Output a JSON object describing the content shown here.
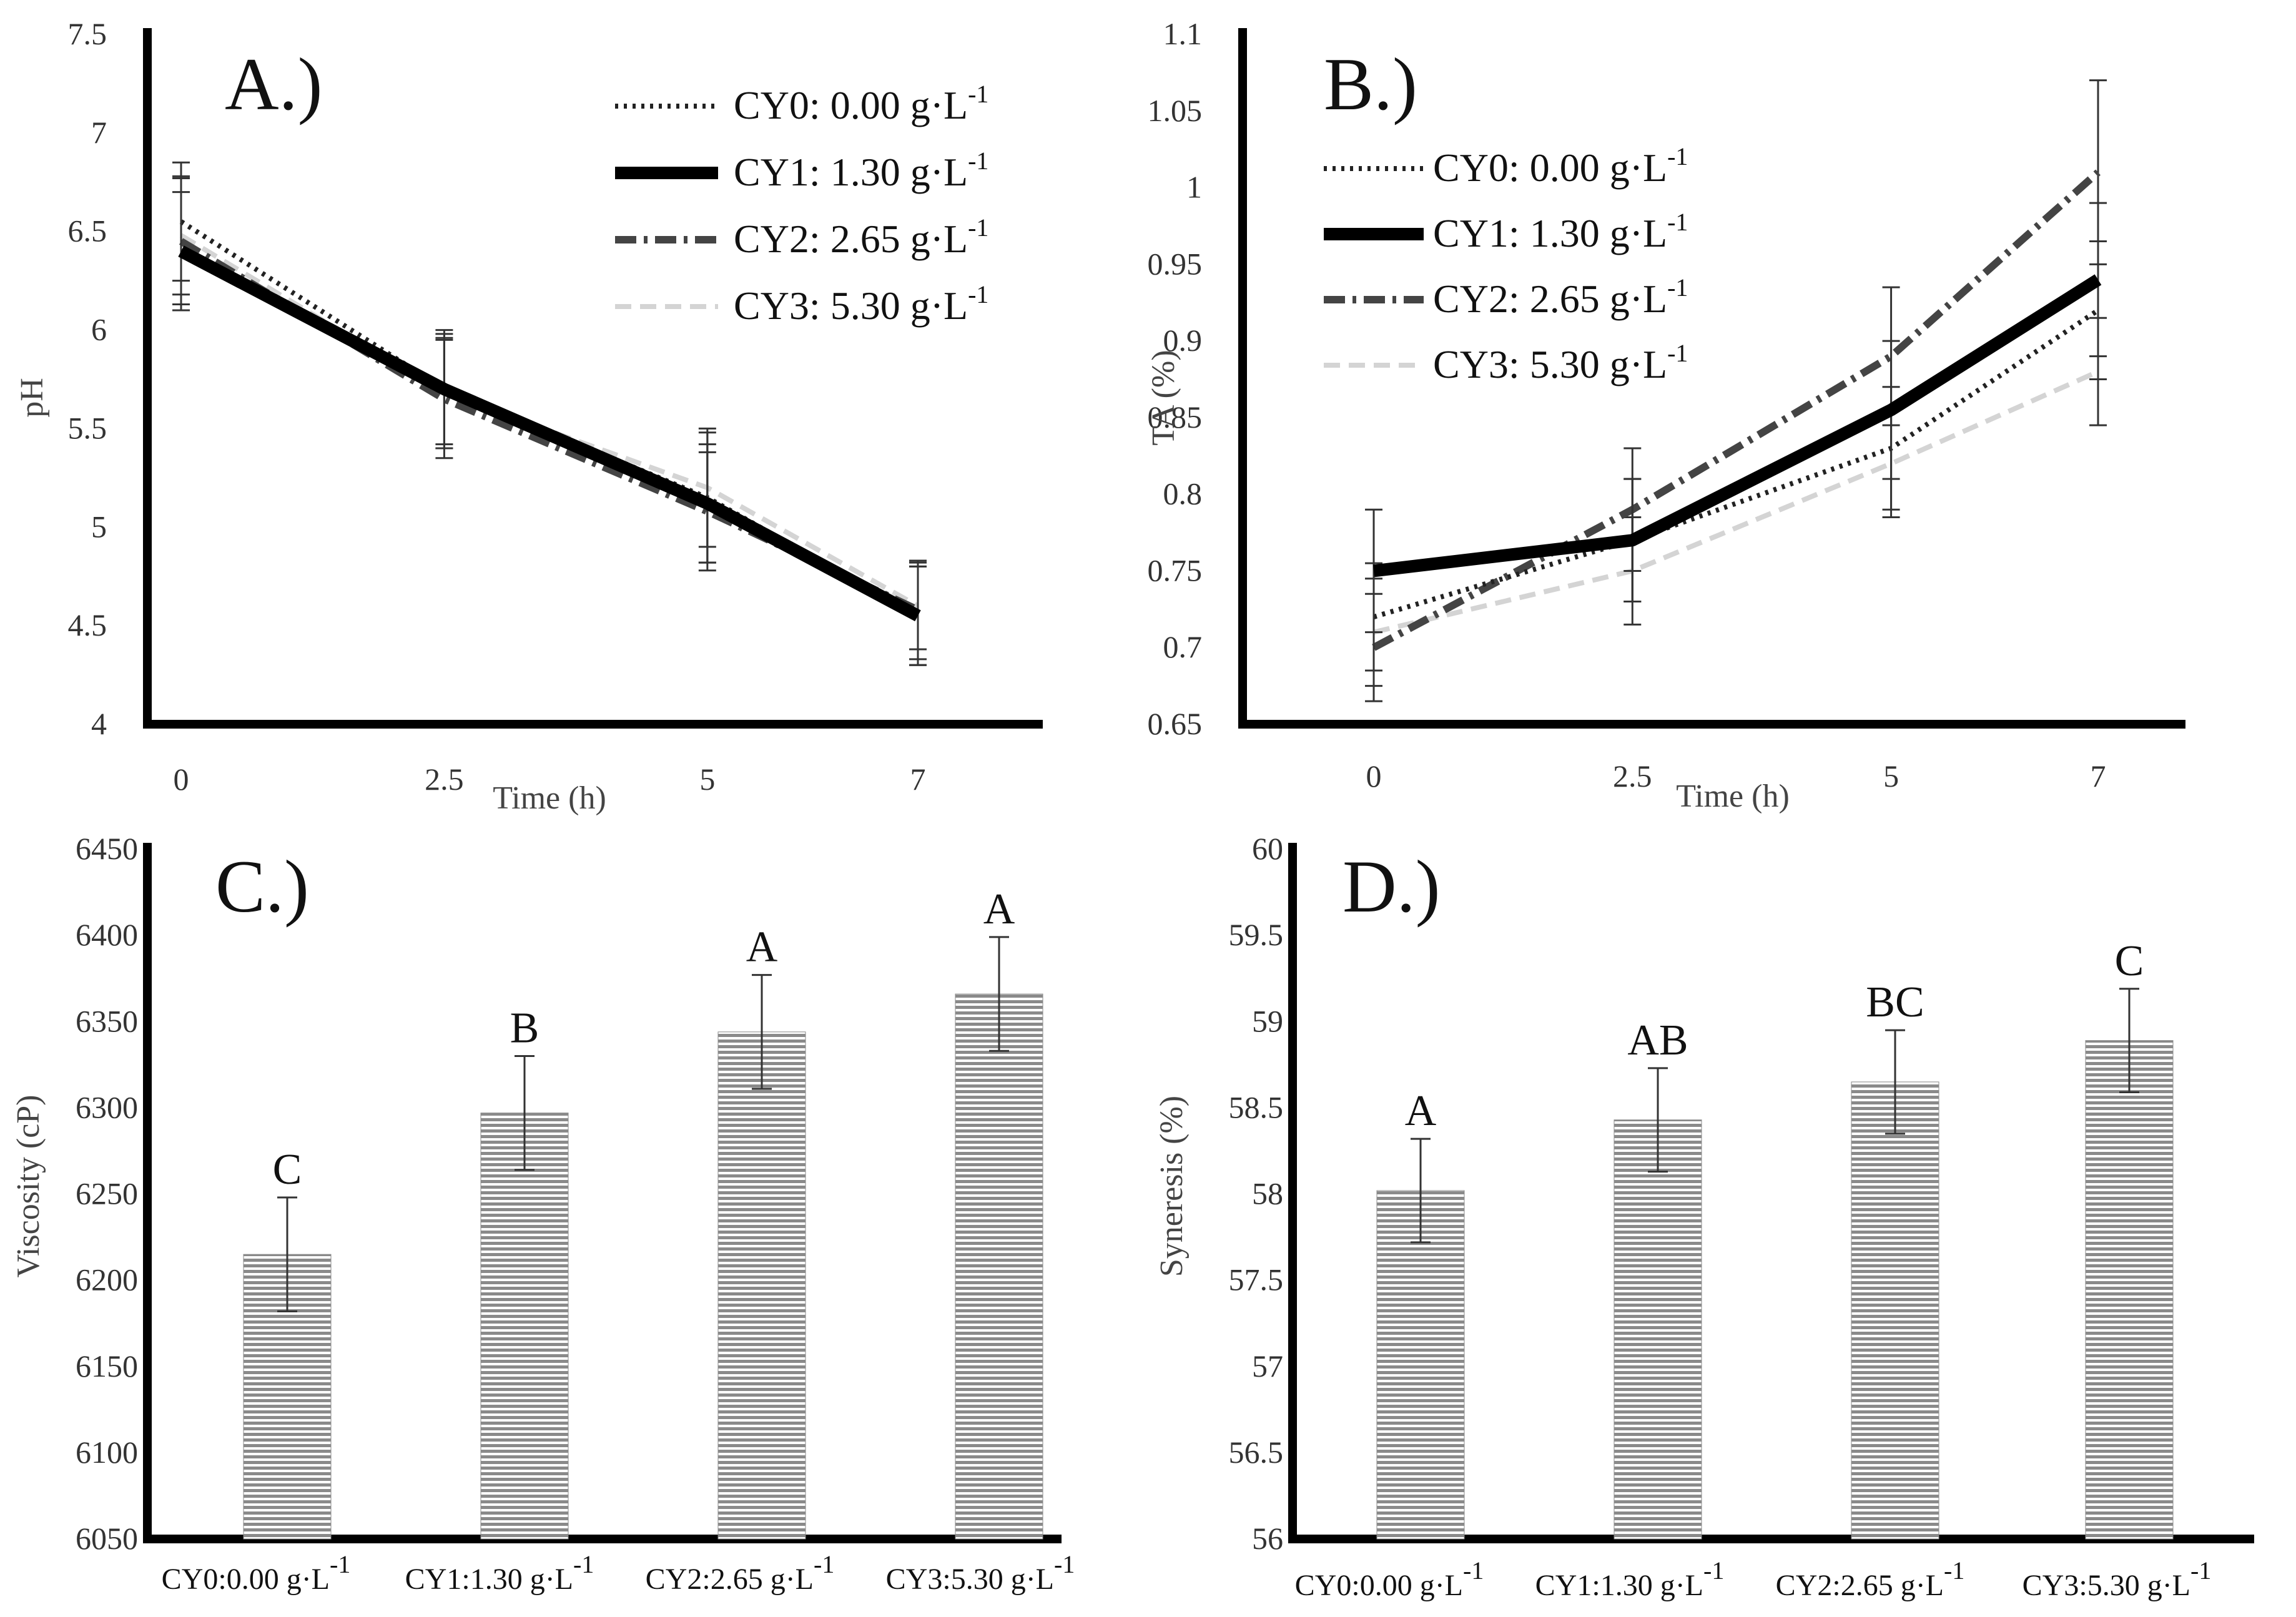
{
  "figure": {
    "background": "#ffffff"
  },
  "chart_data": [
    {
      "type": "line",
      "panel_label": "A.)",
      "xlabel": "Time (h)",
      "ylabel": "pH",
      "x": [
        0,
        2.5,
        5,
        7
      ],
      "x_tick_labels": [
        "0",
        "2.5",
        "5",
        "7"
      ],
      "ylim": [
        4,
        7.5
      ],
      "y_ticks": [
        4,
        4.5,
        5,
        5.5,
        6,
        6.5,
        7,
        7.5
      ],
      "y_tick_labels": [
        "4",
        "4.5",
        "5",
        "5.5",
        "6",
        "6.5",
        "7",
        "7.5"
      ],
      "series": [
        {
          "name": "CY0: 0.00 g·L",
          "unit_sup": "-1",
          "style": "dotted",
          "color": "#222222",
          "values": [
            6.55,
            5.7,
            5.15,
            4.55
          ],
          "errors": [
            0.3,
            0.28,
            0.33,
            0.25
          ]
        },
        {
          "name": "CY1: 1.30 g·L",
          "unit_sup": "-1",
          "style": "solid",
          "color": "#000000",
          "values": [
            6.4,
            5.7,
            5.12,
            4.55
          ],
          "errors": [
            0.3,
            0.3,
            0.3,
            0.25
          ]
        },
        {
          "name": "CY2: 2.65 g·L",
          "unit_sup": "-1",
          "style": "dashdot",
          "color": "#444444",
          "values": [
            6.45,
            5.65,
            5.08,
            4.58
          ],
          "errors": [
            0.32,
            0.3,
            0.3,
            0.25
          ]
        },
        {
          "name": "CY3: 5.30 g·L",
          "unit_sup": "-1",
          "style": "dashed",
          "color": "#d4d4d4",
          "values": [
            6.48,
            5.68,
            5.2,
            4.6
          ],
          "errors": [
            0.3,
            0.28,
            0.3,
            0.22
          ]
        }
      ]
    },
    {
      "type": "line",
      "panel_label": "B.)",
      "xlabel": "Time (h)",
      "ylabel": "TA (%)",
      "x": [
        0,
        2.5,
        5,
        7
      ],
      "x_tick_labels": [
        "0",
        "2.5",
        "5",
        "7"
      ],
      "ylim": [
        0.65,
        1.1
      ],
      "y_ticks": [
        0.65,
        0.7,
        0.75,
        0.8,
        0.85,
        0.9,
        0.95,
        1,
        1.05,
        1.1
      ],
      "y_tick_labels": [
        "0.65",
        "0.7",
        "0.75",
        "0.8",
        "0.85",
        "0.9",
        "0.95",
        "1",
        "1.05",
        "1.1"
      ],
      "series": [
        {
          "name": "CY0: 0.00 g·L",
          "unit_sup": "-1",
          "style": "dotted",
          "color": "#222222",
          "values": [
            0.72,
            0.77,
            0.83,
            0.92
          ],
          "errors": [
            0.035,
            0.04,
            0.04,
            0.045
          ]
        },
        {
          "name": "CY1: 1.30 g·L",
          "unit_sup": "-1",
          "style": "solid",
          "color": "#000000",
          "values": [
            0.75,
            0.77,
            0.855,
            0.94
          ],
          "errors": [
            0.04,
            0.04,
            0.045,
            0.05
          ]
        },
        {
          "name": "CY2: 2.65 g·L",
          "unit_sup": "-1",
          "style": "dashdot",
          "color": "#444444",
          "values": [
            0.7,
            0.79,
            0.89,
            1.01
          ],
          "errors": [
            0.035,
            0.04,
            0.045,
            0.06
          ]
        },
        {
          "name": "CY3: 5.30 g·L",
          "unit_sup": "-1",
          "style": "dashed",
          "color": "#d4d4d4",
          "values": [
            0.71,
            0.75,
            0.82,
            0.88
          ],
          "errors": [
            0.035,
            0.035,
            0.035,
            0.035
          ]
        }
      ]
    },
    {
      "type": "bar",
      "panel_label": "C.)",
      "ylabel": "Viscosity (cP)",
      "categories": [
        "CY0:0.00 g·L",
        "CY1:1.30 g·L",
        "CY2:2.65 g·L",
        "CY3:5.30 g·L"
      ],
      "category_sup": "-1",
      "values": [
        6215,
        6297,
        6344,
        6366
      ],
      "errors": [
        33,
        33,
        33,
        33
      ],
      "letters": [
        "C",
        "B",
        "A",
        "A"
      ],
      "ylim": [
        6050,
        6450
      ],
      "y_ticks": [
        6050,
        6100,
        6150,
        6200,
        6250,
        6300,
        6350,
        6400,
        6450
      ],
      "y_tick_labels": [
        "6050",
        "6100",
        "6150",
        "6200",
        "6250",
        "6300",
        "6350",
        "6400",
        "6450"
      ],
      "bar_fill": "#8a8a8a"
    },
    {
      "type": "bar",
      "panel_label": "D.)",
      "ylabel": "Syneresis (%)",
      "categories": [
        "CY0:0.00 g·L",
        "CY1:1.30 g·L",
        "CY2:2.65 g·L",
        "CY3:5.30 g·L"
      ],
      "category_sup": "-1",
      "values": [
        58.02,
        58.43,
        58.65,
        58.89
      ],
      "errors": [
        0.3,
        0.3,
        0.3,
        0.3
      ],
      "letters": [
        "A",
        "AB",
        "BC",
        "C"
      ],
      "ylim": [
        56,
        60
      ],
      "y_ticks": [
        56,
        56.5,
        57,
        57.5,
        58,
        58.5,
        59,
        59.5,
        60
      ],
      "y_tick_labels": [
        "56",
        "56.5",
        "57",
        "57.5",
        "58",
        "58.5",
        "59",
        "59.5",
        "60"
      ],
      "bar_fill": "#8a8a8a"
    }
  ]
}
